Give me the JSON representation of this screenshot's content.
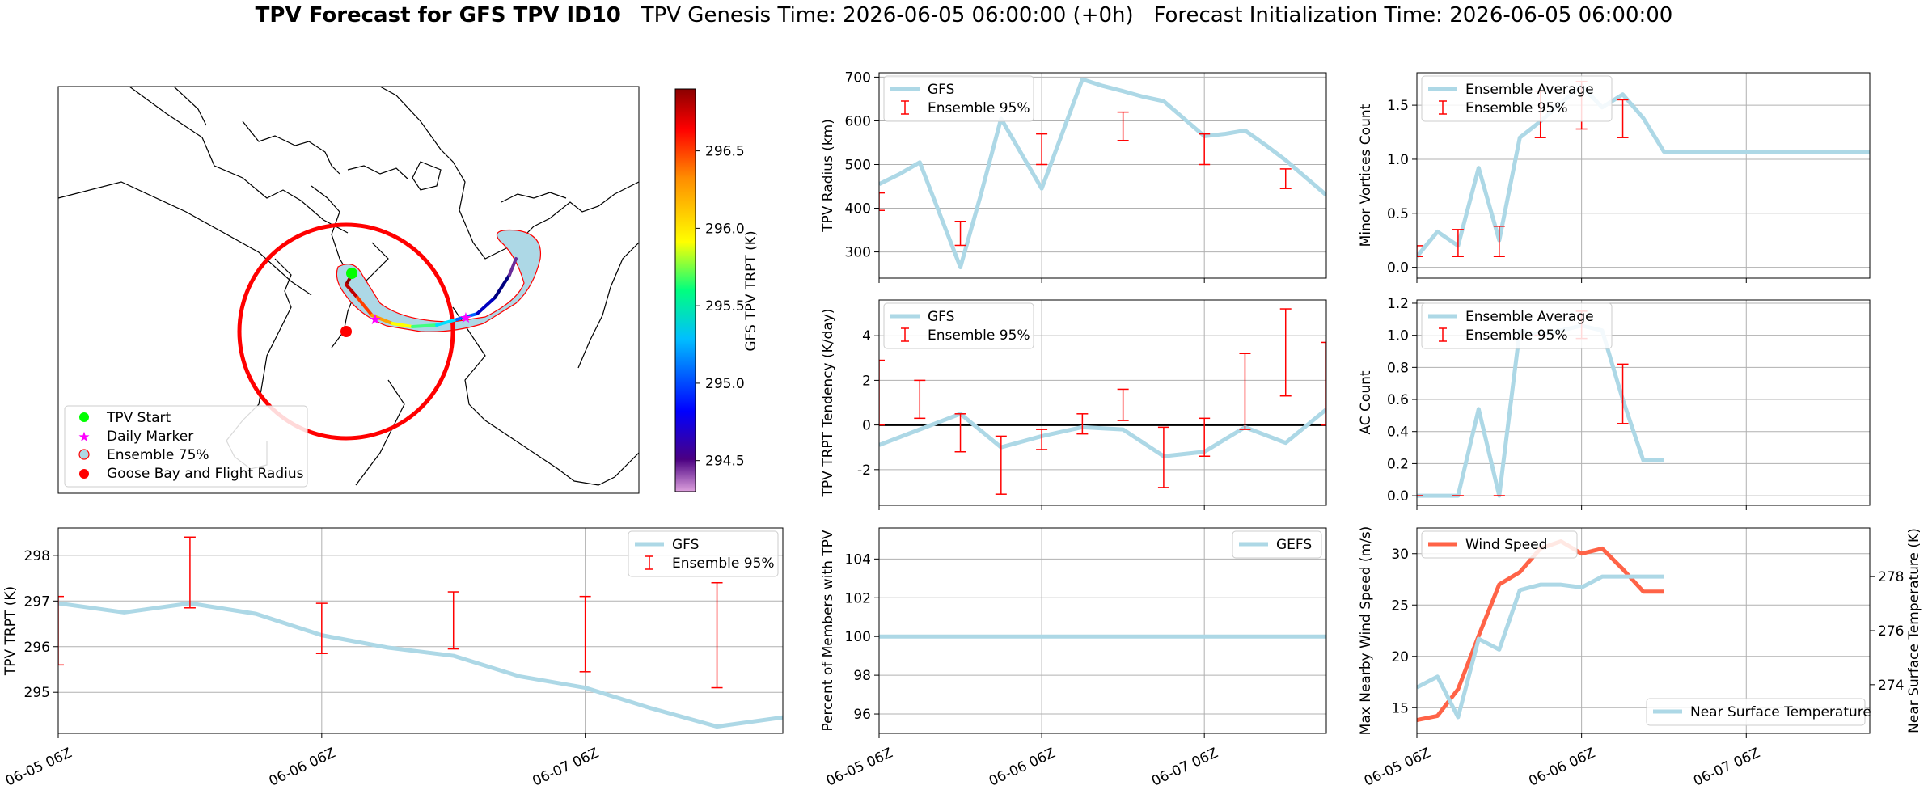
{
  "figure": {
    "title_bold": "TPV Forecast for GFS TPV ID10",
    "title_genesis": "TPV Genesis Time: 2026-06-05 06:00:00 (+0h)",
    "title_init": "Forecast Initialization Time: 2026-06-05 06:00:00"
  },
  "colors": {
    "gfs": "#add8e6",
    "ensemble": "#ff0000",
    "wind": "#ff6347",
    "temp_axis": "#4169e1",
    "zero_line": "#000000"
  },
  "chart_data": [
    {
      "id": "map",
      "type": "map",
      "colorbar_label": "GFS TPV TRPT (K)",
      "colorbar_ticks": [
        294.5,
        295.0,
        295.5,
        296.0,
        296.5
      ],
      "colorbar_range": [
        294.3,
        296.9
      ],
      "colormap": "jet",
      "legend": [
        "TPV Start",
        "Daily Marker",
        "Ensemble 75%",
        "Goose Bay and Flight Radius"
      ],
      "legend_colors": [
        "#00ff00",
        "#ff00ff",
        "#add8e6",
        "#ff0000"
      ]
    },
    {
      "id": "trpt",
      "type": "line",
      "ylabel": "TPV TRPT (K)",
      "xlabel": "",
      "x_ticks": [
        "06-05 06Z",
        "06-06 06Z",
        "06-07 06Z"
      ],
      "x_tick_hours": [
        0,
        24,
        48
      ],
      "xlim": [
        0,
        66
      ],
      "ylim": [
        294.1,
        298.6
      ],
      "y_ticks": [
        295,
        296,
        297,
        298
      ],
      "grid": true,
      "legend": [
        "GFS",
        "Ensemble 95%"
      ],
      "legend_loc": "upper right",
      "series": [
        {
          "name": "GFS",
          "x": [
            0,
            6,
            12,
            18,
            24,
            30,
            36,
            42,
            48,
            54,
            60,
            66
          ],
          "values": [
            296.95,
            296.75,
            296.95,
            296.72,
            296.25,
            295.98,
            295.8,
            295.35,
            295.1,
            294.65,
            294.25,
            294.45
          ]
        }
      ],
      "errorbars": [
        {
          "x": 0,
          "low": 295.6,
          "high": 297.1
        },
        {
          "x": 12,
          "low": 296.85,
          "high": 298.4
        },
        {
          "x": 24,
          "low": 295.85,
          "high": 296.95
        },
        {
          "x": 36,
          "low": 295.95,
          "high": 297.2
        },
        {
          "x": 48,
          "low": 295.45,
          "high": 297.1
        },
        {
          "x": 60,
          "low": 295.1,
          "high": 297.4
        }
      ]
    },
    {
      "id": "radius",
      "type": "line",
      "ylabel": "TPV Radius (km)",
      "xlabel": "",
      "xlim": [
        0,
        66
      ],
      "ylim": [
        240,
        710
      ],
      "y_ticks": [
        300,
        400,
        500,
        600,
        700
      ],
      "grid": true,
      "legend": [
        "GFS",
        "Ensemble 95%"
      ],
      "legend_loc": "upper left",
      "series": [
        {
          "name": "GFS",
          "x": [
            0,
            3,
            6,
            9,
            12,
            15,
            18,
            21,
            24,
            27,
            30,
            33,
            36,
            39,
            42,
            45,
            48,
            51,
            54,
            57,
            60,
            63,
            66
          ],
          "values": [
            455,
            478,
            505,
            385,
            265,
            430,
            605,
            525,
            445,
            570,
            695,
            680,
            668,
            655,
            645,
            605,
            565,
            570,
            578,
            545,
            510,
            470,
            430
          ]
        }
      ],
      "errorbars": [
        {
          "x": 0,
          "low": 395,
          "high": 435
        },
        {
          "x": 12,
          "low": 315,
          "high": 370
        },
        {
          "x": 24,
          "low": 500,
          "high": 570
        },
        {
          "x": 36,
          "low": 555,
          "high": 620
        },
        {
          "x": 48,
          "low": 500,
          "high": 570
        },
        {
          "x": 60,
          "low": 445,
          "high": 490
        }
      ]
    },
    {
      "id": "tendency",
      "type": "line",
      "ylabel": "TPV TRPT Tendency (K/day)",
      "xlabel": "",
      "xlim": [
        0,
        66
      ],
      "ylim": [
        -3.6,
        5.6
      ],
      "y_ticks": [
        -2,
        0,
        2,
        4
      ],
      "zero_line": true,
      "grid": true,
      "legend": [
        "GFS",
        "Ensemble 95%"
      ],
      "legend_loc": "upper left",
      "series": [
        {
          "name": "GFS",
          "x": [
            0,
            6,
            12,
            18,
            24,
            30,
            36,
            42,
            48,
            54,
            60,
            66
          ],
          "values": [
            -0.9,
            -0.2,
            0.5,
            -1.0,
            -0.5,
            -0.1,
            -0.2,
            -1.4,
            -1.2,
            -0.1,
            -0.8,
            0.7
          ]
        }
      ],
      "errorbars": [
        {
          "x": 0,
          "low": 0.0,
          "high": 2.9
        },
        {
          "x": 6,
          "low": 0.3,
          "high": 2.0
        },
        {
          "x": 12,
          "low": -1.2,
          "high": 0.5
        },
        {
          "x": 18,
          "low": -3.1,
          "high": -0.5
        },
        {
          "x": 24,
          "low": -1.1,
          "high": -0.2
        },
        {
          "x": 30,
          "low": -0.4,
          "high": 0.5
        },
        {
          "x": 36,
          "low": 0.2,
          "high": 1.6
        },
        {
          "x": 42,
          "low": -2.8,
          "high": -0.1
        },
        {
          "x": 48,
          "low": -1.4,
          "high": 0.3
        },
        {
          "x": 54,
          "low": -0.2,
          "high": 3.2
        },
        {
          "x": 60,
          "low": 1.3,
          "high": 5.2
        },
        {
          "x": 66,
          "low": 0.0,
          "high": 3.7
        }
      ]
    },
    {
      "id": "members",
      "type": "line",
      "ylabel": "Percent of Members with TPV",
      "xlabel": "",
      "x_ticks": [
        "06-05 06Z",
        "06-06 06Z",
        "06-07 06Z"
      ],
      "x_tick_hours": [
        0,
        24,
        48
      ],
      "xlim": [
        0,
        66
      ],
      "ylim": [
        95,
        105.6
      ],
      "y_ticks": [
        96,
        98,
        100,
        102,
        104
      ],
      "grid": true,
      "legend": [
        "GEFS"
      ],
      "legend_loc": "upper right",
      "series": [
        {
          "name": "GEFS",
          "x": [
            0,
            66
          ],
          "values": [
            100,
            100
          ]
        }
      ]
    },
    {
      "id": "minor",
      "type": "line",
      "ylabel": "Minor Vortices Count",
      "xlabel": "",
      "xlim": [
        0,
        66
      ],
      "ylim": [
        -0.1,
        1.8
      ],
      "y_ticks": [
        0.0,
        0.5,
        1.0,
        1.5
      ],
      "grid": true,
      "legend": [
        "Ensemble Average",
        "Ensemble 95%"
      ],
      "legend_loc": "upper left",
      "series": [
        {
          "name": "Ensemble Average",
          "x": [
            0,
            3,
            6,
            9,
            12,
            15,
            18,
            21,
            24,
            27,
            30,
            33,
            36,
            39,
            42,
            45,
            48,
            51,
            54,
            57,
            60,
            63,
            66
          ],
          "values": [
            0.1,
            0.33,
            0.2,
            0.92,
            0.25,
            1.2,
            1.35,
            1.52,
            1.68,
            1.48,
            1.6,
            1.38,
            1.07,
            1.07,
            1.07,
            1.07,
            1.07,
            1.07,
            1.07,
            1.07,
            1.07,
            1.07,
            1.07
          ]
        }
      ],
      "errorbars": [
        {
          "x": 0,
          "low": 0.1,
          "high": 0.2
        },
        {
          "x": 6,
          "low": 0.1,
          "high": 0.35
        },
        {
          "x": 12,
          "low": 0.1,
          "high": 0.38
        },
        {
          "x": 18,
          "low": 1.2,
          "high": 1.63
        },
        {
          "x": 24,
          "low": 1.28,
          "high": 1.72
        },
        {
          "x": 30,
          "low": 1.2,
          "high": 1.55
        }
      ]
    },
    {
      "id": "ac",
      "type": "line",
      "ylabel": "AC Count",
      "xlabel": "",
      "xlim": [
        0,
        66
      ],
      "ylim": [
        -0.06,
        1.22
      ],
      "y_ticks": [
        0.0,
        0.2,
        0.4,
        0.6,
        0.8,
        1.0,
        1.2
      ],
      "grid": true,
      "legend": [
        "Ensemble Average",
        "Ensemble 95%"
      ],
      "legend_loc": "upper left",
      "series": [
        {
          "name": "Ensemble Average",
          "x": [
            0,
            3,
            6,
            9,
            12,
            15,
            18,
            21,
            24,
            27,
            30,
            33,
            36
          ],
          "values": [
            0.0,
            0.0,
            0.0,
            0.54,
            0.0,
            1.03,
            1.0,
            1.03,
            1.06,
            1.03,
            0.6,
            0.22,
            0.22
          ]
        }
      ],
      "errorbars": [
        {
          "x": 0,
          "low": 0.0,
          "high": 0.0
        },
        {
          "x": 6,
          "low": 0.0,
          "high": 0.0
        },
        {
          "x": 12,
          "low": 0.0,
          "high": 0.0
        },
        {
          "x": 18,
          "low": 1.0,
          "high": 1.0
        },
        {
          "x": 24,
          "low": 0.98,
          "high": 1.15
        },
        {
          "x": 30,
          "low": 0.45,
          "high": 0.82
        }
      ]
    },
    {
      "id": "wind",
      "type": "line",
      "ylabel": "Max Nearby Wind Speed (m/s)",
      "y2label": "Near Surface Temperature (K)",
      "xlabel": "",
      "x_ticks": [
        "06-05 06Z",
        "06-06 06Z",
        "06-07 06Z"
      ],
      "x_tick_hours": [
        0,
        24,
        48
      ],
      "xlim": [
        0,
        66
      ],
      "ylim": [
        12.5,
        32.5
      ],
      "y_ticks": [
        15,
        20,
        25,
        30
      ],
      "y2lim": [
        272.2,
        279.8
      ],
      "y2_ticks": [
        274,
        276,
        278
      ],
      "grid": true,
      "legend": [
        "Wind Speed",
        "Near Surface Temperature"
      ],
      "series": [
        {
          "name": "Wind Speed",
          "axis": "left",
          "x": [
            0,
            3,
            6,
            9,
            12,
            15,
            18,
            21,
            24,
            27,
            30,
            33,
            36
          ],
          "values": [
            13.8,
            14.2,
            16.8,
            22.0,
            27.0,
            28.2,
            30.5,
            31.2,
            30.0,
            30.5,
            28.5,
            26.3,
            26.3
          ]
        },
        {
          "name": "Near Surface Temperature",
          "axis": "right",
          "x": [
            0,
            3,
            6,
            9,
            12,
            15,
            18,
            21,
            24,
            27,
            30,
            33,
            36
          ],
          "values": [
            273.9,
            274.3,
            272.8,
            275.7,
            275.3,
            277.5,
            277.7,
            277.7,
            277.6,
            278.0,
            278.0,
            278.0,
            278.0
          ]
        }
      ]
    }
  ]
}
